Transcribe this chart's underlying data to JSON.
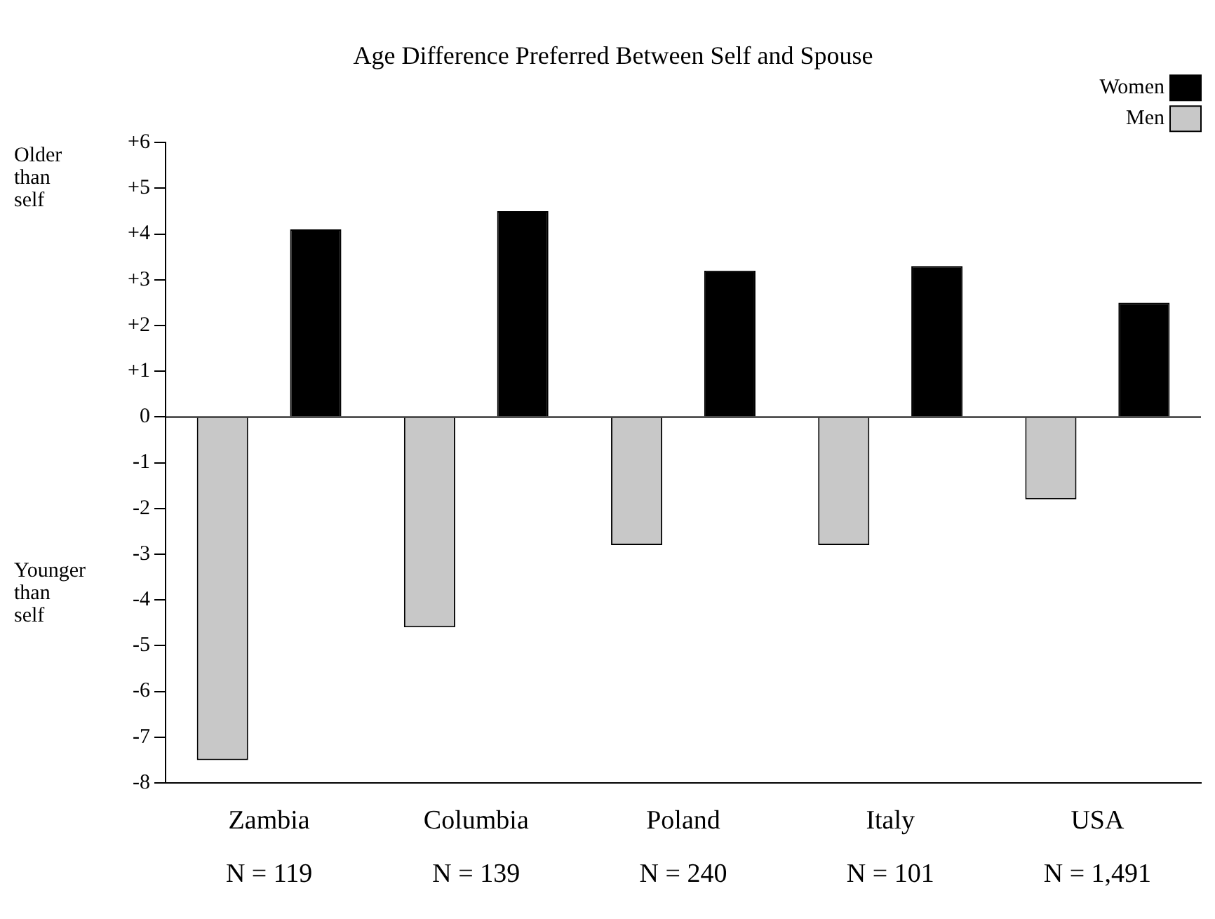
{
  "chart_data": {
    "type": "bar",
    "title": "Age Difference Preferred Between Self and Spouse",
    "categories": [
      "Zambia\nN = 119",
      "Columbia\nN = 139",
      "Poland\nN = 240",
      "Italy\nN = 101",
      "USA\nN = 1,491"
    ],
    "series": [
      {
        "name": "Men",
        "color": "#c8c8c8",
        "values": [
          -7.5,
          -4.6,
          -2.8,
          -2.8,
          -1.8
        ]
      },
      {
        "name": "Women",
        "color": "#000000",
        "values": [
          4.1,
          4.5,
          3.2,
          3.3,
          2.5
        ]
      }
    ],
    "ylim": [
      -8,
      6
    ],
    "yticks": [
      -8,
      -7,
      -6,
      -5,
      -4,
      -3,
      -2,
      -1,
      0,
      {
        "value": 1,
        "label": "+1"
      },
      {
        "value": 2,
        "label": "+2"
      },
      {
        "value": 3,
        "label": "+3"
      },
      {
        "value": 4,
        "label": "+4"
      },
      {
        "value": 5,
        "label": "+5"
      },
      {
        "value": 6,
        "label": "+6"
      }
    ],
    "annotations": [
      "Older than self",
      "Younger than self"
    ],
    "ref_lines": [
      {
        "axis": "y",
        "value": 0,
        "color": "#000000"
      }
    ],
    "legend": "top right",
    "grid": false
  }
}
